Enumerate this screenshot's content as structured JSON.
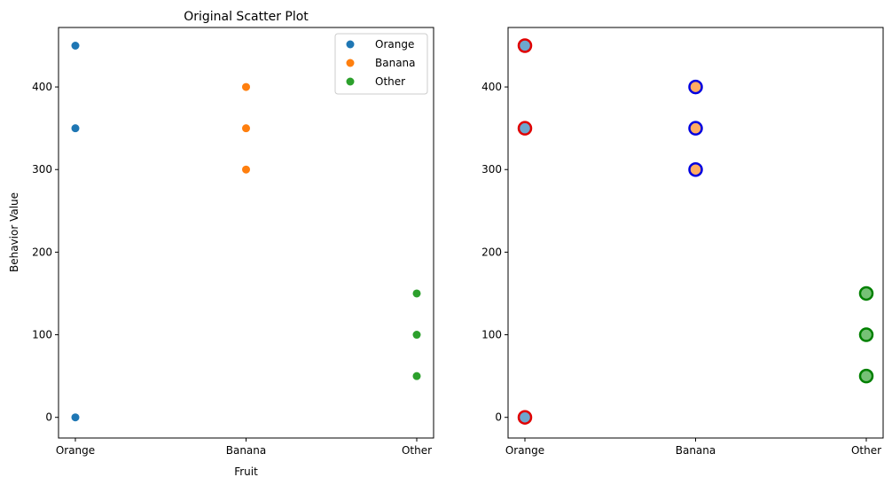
{
  "chart_data": [
    {
      "type": "scatter",
      "title": "Original Scatter Plot",
      "xlabel": "Fruit",
      "ylabel": "Behavior Value",
      "categories": [
        "Orange",
        "Banana",
        "Other"
      ],
      "ylim": [
        -25,
        472
      ],
      "yticks": [
        0,
        100,
        200,
        300,
        400
      ],
      "grid": false,
      "legend": "top-right",
      "series": [
        {
          "name": "Orange",
          "color": "#1f77b4",
          "points": [
            {
              "x": "Orange",
              "y": 450
            },
            {
              "x": "Orange",
              "y": 350
            },
            {
              "x": "Orange",
              "y": 0
            }
          ]
        },
        {
          "name": "Banana",
          "color": "#ff7f0e",
          "points": [
            {
              "x": "Banana",
              "y": 400
            },
            {
              "x": "Banana",
              "y": 350
            },
            {
              "x": "Banana",
              "y": 300
            }
          ]
        },
        {
          "name": "Other",
          "color": "#2ca02c",
          "points": [
            {
              "x": "Other",
              "y": 150
            },
            {
              "x": "Other",
              "y": 100
            },
            {
              "x": "Other",
              "y": 50
            }
          ]
        }
      ]
    },
    {
      "type": "scatter",
      "title": "",
      "xlabel": "",
      "ylabel": "",
      "categories": [
        "Orange",
        "Banana",
        "Other"
      ],
      "ylim": [
        -25,
        472
      ],
      "yticks": [
        0,
        100,
        200,
        300,
        400
      ],
      "grid": false,
      "legend": "none",
      "series": [
        {
          "color": "#1f77b4",
          "edge_color": "#e00000",
          "points": [
            {
              "x": "Orange",
              "y": 450
            },
            {
              "x": "Orange",
              "y": 350
            },
            {
              "x": "Orange",
              "y": 0
            }
          ]
        },
        {
          "color": "#ff7f0e",
          "edge_color": "#0000e0",
          "points": [
            {
              "x": "Banana",
              "y": 400
            },
            {
              "x": "Banana",
              "y": 350
            },
            {
              "x": "Banana",
              "y": 300
            }
          ]
        },
        {
          "color": "#2ca02c",
          "edge_color": "#008000",
          "points": [
            {
              "x": "Other",
              "y": 150
            },
            {
              "x": "Other",
              "y": 100
            },
            {
              "x": "Other",
              "y": 50
            }
          ]
        }
      ]
    }
  ]
}
